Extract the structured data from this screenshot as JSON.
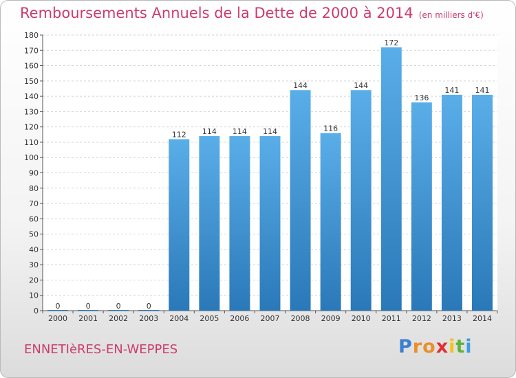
{
  "header": {
    "title": "Remboursements Annuels de la Dette de 2000 à 2014",
    "unit": "(en milliers d'€)"
  },
  "footer": {
    "town": "ENNETIèRES-EN-WEPPES",
    "logo_letters": [
      {
        "char": "P",
        "color": "#3a7fd0"
      },
      {
        "char": "r",
        "color": "#e8902a"
      },
      {
        "char": "o",
        "color": "#e8902a"
      },
      {
        "char": "x",
        "color": "#e03030"
      },
      {
        "char": "i",
        "color": "#f2c21a"
      },
      {
        "char": "t",
        "color": "#5cb23a"
      },
      {
        "char": "i",
        "color": "#3a9ee0"
      }
    ]
  },
  "chart_data": {
    "type": "bar",
    "categories": [
      "2000",
      "2001",
      "2002",
      "2003",
      "2004",
      "2005",
      "2006",
      "2007",
      "2008",
      "2009",
      "2010",
      "2011",
      "2012",
      "2013",
      "2014"
    ],
    "values": [
      0,
      0,
      0,
      0,
      112,
      114,
      114,
      114,
      144,
      116,
      144,
      172,
      136,
      141,
      141
    ],
    "ylim": [
      0,
      180
    ],
    "yticks": [
      0,
      10,
      20,
      30,
      40,
      50,
      60,
      70,
      80,
      90,
      100,
      110,
      120,
      130,
      140,
      150,
      160,
      170,
      180
    ],
    "grid": true,
    "bar_color_top": "#5aaee8",
    "bar_color_bottom": "#2a78b8",
    "title_color": "#cc3b6e"
  }
}
